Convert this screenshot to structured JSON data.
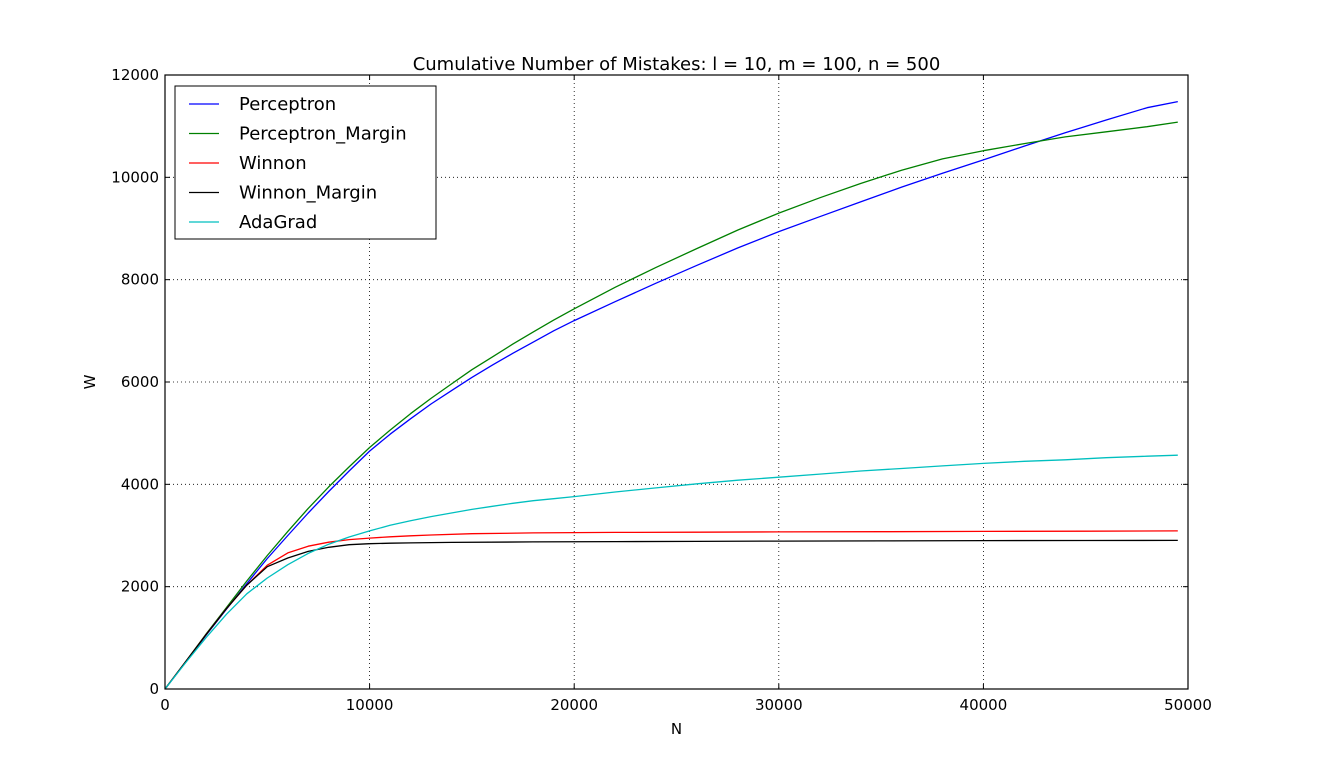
{
  "chart_data": {
    "type": "line",
    "title": "Cumulative Number of Mistakes: l = 10, m = 100, n = 500",
    "xlabel": "N",
    "ylabel": "W",
    "xlim": [
      0,
      50000
    ],
    "ylim": [
      0,
      12000
    ],
    "xticks": [
      0,
      10000,
      20000,
      30000,
      40000,
      50000
    ],
    "yticks": [
      0,
      2000,
      4000,
      6000,
      8000,
      10000,
      12000
    ],
    "grid": true,
    "legend_position": "top-left",
    "series": [
      {
        "name": "Perceptron",
        "color": "#0000ff",
        "x": [
          0,
          1000,
          2000,
          3000,
          4000,
          5000,
          6000,
          7000,
          8000,
          9000,
          10000,
          11000,
          12000,
          13000,
          14000,
          15000,
          16000,
          17000,
          18000,
          19000,
          20000,
          22000,
          24000,
          26000,
          28000,
          30000,
          32000,
          34000,
          36000,
          38000,
          40000,
          42000,
          44000,
          46000,
          48000,
          49500
        ],
        "y": [
          0,
          520,
          1050,
          1560,
          2060,
          2550,
          3000,
          3440,
          3860,
          4260,
          4650,
          4980,
          5280,
          5570,
          5830,
          6090,
          6330,
          6560,
          6780,
          7000,
          7200,
          7570,
          7930,
          8280,
          8620,
          8940,
          9230,
          9520,
          9810,
          10080,
          10340,
          10610,
          10870,
          11120,
          11360,
          11480
        ]
      },
      {
        "name": "Perceptron_Margin",
        "color": "#008000",
        "x": [
          0,
          1000,
          2000,
          3000,
          4000,
          5000,
          6000,
          7000,
          8000,
          9000,
          10000,
          11000,
          12000,
          13000,
          14000,
          15000,
          16000,
          17000,
          18000,
          19000,
          20000,
          22000,
          24000,
          26000,
          28000,
          30000,
          32000,
          34000,
          36000,
          38000,
          40000,
          42000,
          44000,
          46000,
          48000,
          49500
        ],
        "y": [
          0,
          530,
          1070,
          1590,
          2110,
          2610,
          3080,
          3530,
          3950,
          4340,
          4720,
          5060,
          5380,
          5680,
          5960,
          6240,
          6490,
          6740,
          6980,
          7210,
          7430,
          7850,
          8240,
          8610,
          8970,
          9300,
          9600,
          9880,
          10140,
          10360,
          10520,
          10660,
          10790,
          10890,
          10990,
          11080
        ]
      },
      {
        "name": "Winnon",
        "color": "#ff0000",
        "x": [
          0,
          1000,
          2000,
          3000,
          4000,
          5000,
          6000,
          7000,
          8000,
          9000,
          10000,
          11000,
          12000,
          13000,
          15000,
          18000,
          22000,
          26000,
          30000,
          35000,
          40000,
          45000,
          49500
        ],
        "y": [
          0,
          530,
          1060,
          1570,
          2030,
          2420,
          2660,
          2790,
          2870,
          2920,
          2950,
          2975,
          2995,
          3010,
          3035,
          3050,
          3060,
          3065,
          3070,
          3075,
          3080,
          3085,
          3090
        ]
      },
      {
        "name": "Winnon_Margin",
        "color": "#000000",
        "x": [
          0,
          1000,
          2000,
          3000,
          4000,
          5000,
          6000,
          7000,
          8000,
          9000,
          10000,
          11000,
          12000,
          14000,
          18000,
          22000,
          26000,
          30000,
          35000,
          40000,
          45000,
          49500
        ],
        "y": [
          0,
          530,
          1060,
          1570,
          2030,
          2390,
          2560,
          2690,
          2770,
          2820,
          2840,
          2850,
          2855,
          2865,
          2875,
          2880,
          2885,
          2890,
          2895,
          2900,
          2902,
          2905
        ]
      },
      {
        "name": "AdaGrad",
        "color": "#00bfbf",
        "x": [
          0,
          1000,
          2000,
          3000,
          4000,
          5000,
          6000,
          7000,
          8000,
          9000,
          10000,
          11000,
          12000,
          13000,
          14000,
          15000,
          16000,
          17000,
          18000,
          19000,
          20000,
          22000,
          24000,
          26000,
          28000,
          30000,
          32000,
          34000,
          36000,
          38000,
          40000,
          42000,
          44000,
          46000,
          48000,
          49500
        ],
        "y": [
          0,
          510,
          1000,
          1460,
          1860,
          2170,
          2430,
          2650,
          2830,
          2970,
          3090,
          3200,
          3290,
          3370,
          3440,
          3510,
          3570,
          3630,
          3680,
          3720,
          3760,
          3850,
          3930,
          4010,
          4080,
          4140,
          4200,
          4260,
          4310,
          4360,
          4410,
          4450,
          4480,
          4520,
          4550,
          4570
        ]
      }
    ]
  }
}
